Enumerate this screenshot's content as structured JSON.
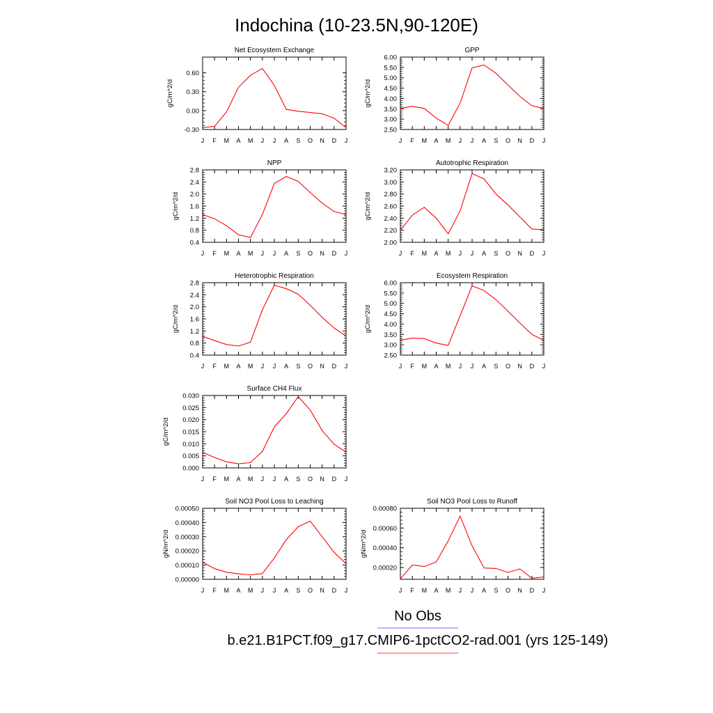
{
  "figure": {
    "title": "Indochina (10-23.5N,90-120E)",
    "legend": {
      "items": [
        {
          "label": "No Obs",
          "color": "#8a8aff"
        },
        {
          "label": "b.e21.B1PCT.f09_g17.CMIP6-1pctCO2-rad.001 (yrs 125-149)",
          "color": "#ff6060"
        }
      ]
    },
    "line_color": "#ff0000"
  },
  "chart_data": [
    {
      "type": "line",
      "title": "Net Ecosystem Exchange",
      "ylabel": "gC/m^2/d",
      "categories": [
        "J",
        "F",
        "M",
        "A",
        "M",
        "J",
        "J",
        "A",
        "S",
        "O",
        "N",
        "D",
        "J"
      ],
      "yticks": [
        "0.60",
        "0.30",
        "0.00",
        "-0.30"
      ],
      "ytick_values": [
        0.6,
        0.3,
        0.0,
        -0.3
      ],
      "ylim": [
        -0.3,
        0.85
      ],
      "series": [
        {
          "values": [
            -0.27,
            -0.25,
            -0.02,
            0.37,
            0.56,
            0.67,
            0.4,
            0.02,
            -0.01,
            -0.03,
            -0.05,
            -0.12,
            -0.27
          ]
        }
      ]
    },
    {
      "type": "line",
      "title": "GPP",
      "ylabel": "gC/m^2/d",
      "categories": [
        "J",
        "F",
        "M",
        "A",
        "M",
        "J",
        "J",
        "A",
        "S",
        "O",
        "N",
        "D",
        "J"
      ],
      "yticks": [
        "6.00",
        "5.50",
        "5.00",
        "4.50",
        "4.00",
        "3.50",
        "3.00",
        "2.50"
      ],
      "ytick_values": [
        6.0,
        5.5,
        5.0,
        4.5,
        4.0,
        3.5,
        3.0,
        2.5
      ],
      "ylim": [
        2.5,
        6.0
      ],
      "series": [
        {
          "values": [
            3.52,
            3.62,
            3.52,
            3.05,
            2.7,
            3.78,
            5.48,
            5.62,
            5.22,
            4.65,
            4.1,
            3.65,
            3.52
          ]
        }
      ]
    },
    {
      "type": "line",
      "title": "NPP",
      "ylabel": "gC/m^2/d",
      "categories": [
        "J",
        "F",
        "M",
        "A",
        "M",
        "J",
        "J",
        "A",
        "S",
        "O",
        "N",
        "D",
        "J"
      ],
      "yticks": [
        "2.8",
        "2.4",
        "2.0",
        "1.6",
        "1.2",
        "0.8",
        "0.4"
      ],
      "ytick_values": [
        2.8,
        2.4,
        2.0,
        1.6,
        1.2,
        0.8,
        0.4
      ],
      "ylim": [
        0.4,
        2.8
      ],
      "series": [
        {
          "values": [
            1.32,
            1.18,
            0.95,
            0.65,
            0.56,
            1.32,
            2.35,
            2.58,
            2.42,
            2.05,
            1.7,
            1.42,
            1.32
          ]
        }
      ]
    },
    {
      "type": "line",
      "title": "Autotrophic Respiration",
      "ylabel": "gC/m^2/d",
      "categories": [
        "J",
        "F",
        "M",
        "A",
        "M",
        "J",
        "J",
        "A",
        "S",
        "O",
        "N",
        "D",
        "J"
      ],
      "yticks": [
        "3.20",
        "3.00",
        "2.80",
        "2.60",
        "2.40",
        "2.20",
        "2.00"
      ],
      "ytick_values": [
        3.2,
        3.0,
        2.8,
        2.6,
        2.4,
        2.2,
        2.0
      ],
      "ylim": [
        2.0,
        3.2
      ],
      "series": [
        {
          "values": [
            2.2,
            2.45,
            2.58,
            2.4,
            2.14,
            2.52,
            3.14,
            3.05,
            2.8,
            2.62,
            2.42,
            2.22,
            2.21
          ]
        }
      ]
    },
    {
      "type": "line",
      "title": "Heterotrophic Respiration",
      "ylabel": "gC/m^2/d",
      "categories": [
        "J",
        "F",
        "M",
        "A",
        "M",
        "J",
        "J",
        "A",
        "S",
        "O",
        "N",
        "D",
        "J"
      ],
      "yticks": [
        "2.8",
        "2.4",
        "2.0",
        "1.6",
        "1.2",
        "0.8",
        "0.4"
      ],
      "ytick_values": [
        2.8,
        2.4,
        2.0,
        1.6,
        1.2,
        0.8,
        0.4
      ],
      "ylim": [
        0.4,
        2.8
      ],
      "series": [
        {
          "values": [
            1.02,
            0.88,
            0.75,
            0.7,
            0.83,
            1.9,
            2.72,
            2.6,
            2.42,
            2.05,
            1.65,
            1.3,
            1.03
          ]
        }
      ]
    },
    {
      "type": "line",
      "title": "Ecosystem Respiration",
      "ylabel": "gC/m^2/d",
      "categories": [
        "J",
        "F",
        "M",
        "A",
        "M",
        "J",
        "J",
        "A",
        "S",
        "O",
        "N",
        "D",
        "J"
      ],
      "yticks": [
        "6.00",
        "5.50",
        "5.00",
        "4.50",
        "4.00",
        "3.50",
        "3.00",
        "2.50"
      ],
      "ytick_values": [
        6.0,
        5.5,
        5.0,
        4.5,
        4.0,
        3.5,
        3.0,
        2.5
      ],
      "ylim": [
        2.5,
        6.0
      ],
      "series": [
        {
          "values": [
            3.22,
            3.32,
            3.3,
            3.08,
            2.97,
            4.4,
            5.85,
            5.62,
            5.18,
            4.62,
            4.05,
            3.5,
            3.22
          ]
        }
      ]
    },
    {
      "type": "line",
      "title": "Surface CH4 Flux",
      "ylabel": "gC/m^2/d",
      "categories": [
        "J",
        "F",
        "M",
        "A",
        "M",
        "J",
        "J",
        "A",
        "S",
        "O",
        "N",
        "D",
        "J"
      ],
      "yticks": [
        "0.030",
        "0.025",
        "0.020",
        "0.015",
        "0.010",
        "0.005",
        "0.000"
      ],
      "ytick_values": [
        0.03,
        0.025,
        0.02,
        0.015,
        0.01,
        0.005,
        0.0
      ],
      "ylim": [
        0.0,
        0.03
      ],
      "series": [
        {
          "values": [
            0.0065,
            0.0043,
            0.0025,
            0.0017,
            0.0022,
            0.0068,
            0.017,
            0.0225,
            0.0295,
            0.024,
            0.0155,
            0.0098,
            0.0065
          ]
        }
      ]
    },
    {
      "type": "line",
      "title": "Soil NO3 Pool Loss to Leaching",
      "ylabel": "gN/m^2/d",
      "categories": [
        "J",
        "F",
        "M",
        "A",
        "M",
        "J",
        "J",
        "A",
        "S",
        "O",
        "N",
        "D",
        "J"
      ],
      "yticks": [
        "0.00050",
        "0.00040",
        "0.00030",
        "0.00020",
        "0.00010",
        "0.00000"
      ],
      "ytick_values": [
        0.0005,
        0.0004,
        0.0003,
        0.0002,
        0.0001,
        0.0
      ],
      "ylim": [
        0.0,
        0.0005
      ],
      "series": [
        {
          "values": [
            0.00012,
            7.5e-05,
            5e-05,
            3.8e-05,
            3.2e-05,
            4e-05,
            0.00015,
            0.00028,
            0.00037,
            0.00041,
            0.0003,
            0.00019,
            0.00011
          ]
        }
      ]
    },
    {
      "type": "line",
      "title": "Soil NO3 Pool Loss to Runoff",
      "ylabel": "gN/m^2/d",
      "categories": [
        "J",
        "F",
        "M",
        "A",
        "M",
        "J",
        "J",
        "A",
        "S",
        "O",
        "N",
        "D",
        "J"
      ],
      "yticks": [
        "0.00080",
        "0.00060",
        "0.00040",
        "0.00020"
      ],
      "ytick_values": [
        0.0008,
        0.0006,
        0.0004,
        0.0002
      ],
      "ylim": [
        8e-05,
        0.0008
      ],
      "series": [
        {
          "values": [
            8.5e-05,
            0.000225,
            0.00021,
            0.000255,
            0.00047,
            0.00072,
            0.00042,
            0.000195,
            0.00019,
            0.00015,
            0.000185,
            9e-05,
            0.000105
          ]
        }
      ]
    }
  ]
}
